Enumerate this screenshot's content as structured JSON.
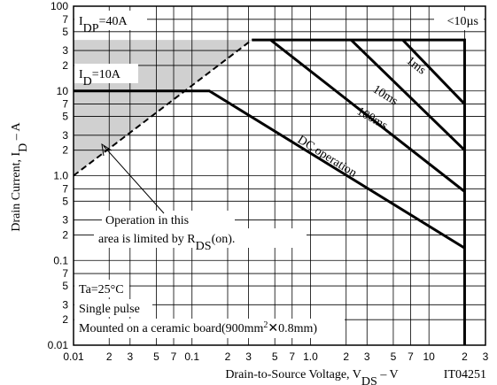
{
  "chart_data": {
    "type": "line",
    "xlabel": [
      {
        "text": "Drain-to-Source Voltage, V"
      },
      {
        "text": "DS",
        "sub": true
      },
      {
        "text": " – V"
      }
    ],
    "ylabel": [
      {
        "text": "Drain Current, I"
      },
      {
        "text": "D",
        "sub": true
      },
      {
        "text": " – A"
      }
    ],
    "code": "IT04251",
    "xscale": "log",
    "yscale": "log",
    "grid": true,
    "xlim": [
      0.01,
      30
    ],
    "ylim": [
      0.01,
      100
    ],
    "xticks": [
      0.01,
      {
        "value": 0.02,
        "label": "2"
      },
      {
        "value": 0.03,
        "label": "3"
      },
      {
        "value": 0.05,
        "label": "5"
      },
      {
        "value": 0.07,
        "label": "7"
      },
      0.1,
      {
        "value": 0.2,
        "label": "2"
      },
      {
        "value": 0.3,
        "label": "3"
      },
      {
        "value": 0.5,
        "label": "5"
      },
      {
        "value": 0.7,
        "label": "7"
      },
      {
        "value": 1,
        "label": "1.0"
      },
      2,
      3,
      5,
      7,
      10,
      {
        "value": 20,
        "label": "2"
      },
      {
        "value": 30,
        "label": "3"
      }
    ],
    "yticks": [
      0.01,
      {
        "value": 0.02,
        "label": "2"
      },
      {
        "value": 0.03,
        "label": "3"
      },
      {
        "value": 0.05,
        "label": "5"
      },
      {
        "value": 0.07,
        "label": "7"
      },
      0.1,
      {
        "value": 0.2,
        "label": "2"
      },
      {
        "value": 0.3,
        "label": "3"
      },
      {
        "value": 0.5,
        "label": "5"
      },
      {
        "value": 0.7,
        "label": "7"
      },
      {
        "value": 1,
        "label": "1.0"
      },
      2,
      3,
      5,
      7,
      10,
      {
        "value": 20,
        "label": "2"
      },
      {
        "value": 30,
        "label": "3"
      },
      {
        "value": 50,
        "label": "5"
      },
      {
        "value": 70,
        "label": "7"
      },
      100
    ],
    "series": [
      {
        "color": "#000000",
        "dashed": true,
        "x": [
          0.01,
          0.32
        ],
        "values": [
          1,
          40
        ]
      },
      {
        "color": "#000000",
        "x": [
          0.32,
          20,
          20
        ],
        "values": [
          40,
          40,
          0.01
        ]
      },
      {
        "color": "#000000",
        "x": [
          6,
          20
        ],
        "values": [
          40,
          7
        ]
      },
      {
        "color": "#000000",
        "x": [
          2.2,
          20
        ],
        "values": [
          40,
          2
        ]
      },
      {
        "color": "#000000",
        "x": [
          0.46,
          20
        ],
        "values": [
          40,
          0.65
        ]
      },
      {
        "color": "#000000",
        "x": [
          0.01,
          0.14,
          20
        ],
        "values": [
          10,
          10,
          0.14
        ]
      }
    ],
    "curve_labels": [
      [
        {
          "text": "I"
        },
        {
          "text": "DP",
          "sub": true
        },
        {
          "text": "=40A"
        }
      ],
      [
        {
          "text": "I"
        },
        {
          "text": "D",
          "sub": true
        },
        {
          "text": "=10A"
        }
      ],
      [
        {
          "text": "<10µs"
        }
      ],
      [
        {
          "text": "1ms"
        }
      ],
      [
        {
          "text": "10ms"
        }
      ],
      [
        {
          "text": "100ms"
        }
      ],
      [
        {
          "text": "DC operation"
        }
      ]
    ],
    "note": [
      [
        {
          "text": "Operation in this"
        }
      ],
      [
        {
          "text": "area is limited by R"
        },
        {
          "text": "DS",
          "sub": true
        },
        {
          "text": "(on)."
        }
      ]
    ],
    "conditions": [
      [
        {
          "text": "Ta=25°C"
        }
      ],
      [
        {
          "text": "Single pulse"
        }
      ],
      [
        {
          "text": "Mounted on a ceramic board(900mm"
        },
        {
          "text": "2",
          "sup": true
        },
        {
          "text": "✕0.8mm)"
        }
      ]
    ]
  }
}
